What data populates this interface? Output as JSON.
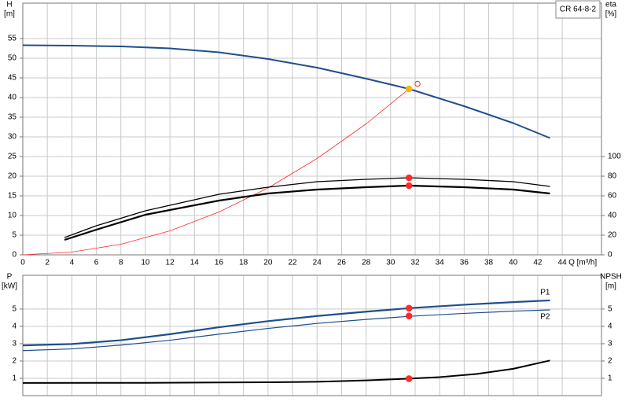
{
  "chart_data": [
    {
      "type": "line",
      "ylabel": [
        "H",
        "[m]"
      ],
      "y2label": [
        "eta",
        "[%]"
      ],
      "xlabel": "Q [m³/h]",
      "label_box": "CR 64-8-2",
      "xlim": [
        0,
        47.2
      ],
      "xticks": [
        0,
        2,
        4,
        6,
        8,
        10,
        12,
        14,
        16,
        18,
        20,
        22,
        24,
        26,
        28,
        30,
        32,
        34,
        36,
        38,
        40,
        42,
        44
      ],
      "ylim": [
        0,
        64
      ],
      "yticks": [
        0,
        5,
        10,
        15,
        20,
        25,
        30,
        35,
        40,
        45,
        50,
        55
      ],
      "y2lim": [
        0,
        256
      ],
      "y2ticks": [
        0,
        20,
        40,
        60,
        80,
        100
      ],
      "grid": true,
      "xtick_labels": true,
      "series": [
        {
          "color": "#ff2a2a",
          "width": 0.8,
          "x": [
            0,
            4,
            8,
            12,
            16,
            20,
            24,
            28,
            31.5
          ],
          "values": [
            0,
            0.7,
            2.7,
            6.1,
            10.9,
            17,
            24.5,
            33.3,
            42.2
          ]
        },
        {
          "color": "#1f4e8c",
          "width": 2,
          "x": [
            0,
            4,
            8,
            12,
            16,
            20,
            24,
            28,
            31.5,
            36,
            40,
            43
          ],
          "values": [
            53.3,
            53.2,
            53.0,
            52.5,
            51.5,
            49.8,
            47.6,
            44.8,
            42.2,
            37.8,
            33.5,
            29.7
          ]
        },
        {
          "color": "#000000",
          "width": 1.3,
          "axis": "y2",
          "x": [
            3.4,
            6,
            10,
            16,
            20,
            24,
            28,
            31.5,
            36,
            40,
            43
          ],
          "values": [
            17.6,
            29.6,
            44.8,
            61.6,
            68.8,
            74.4,
            76.8,
            78.4,
            76.8,
            74.4,
            69.6
          ]
        },
        {
          "color": "#000000",
          "width": 2.2,
          "axis": "y2",
          "x": [
            3.4,
            6,
            10,
            16,
            20,
            24,
            28,
            31.5,
            36,
            40,
            43
          ],
          "values": [
            15.2,
            25.6,
            40.8,
            55.2,
            62.4,
            66.4,
            68.8,
            70.4,
            68.8,
            66.4,
            62.4
          ]
        },
        {
          "color": "#ff2a2a",
          "marker": "dot",
          "axis": "y2",
          "x": [
            31.5,
            31.5
          ],
          "values": [
            78.4,
            70.4
          ]
        },
        {
          "color": "#ff2a2a",
          "marker": "ring",
          "x": [
            32.2
          ],
          "values": [
            43.5
          ]
        },
        {
          "color": "#f5b800",
          "marker": "dot",
          "x": [
            31.5
          ],
          "values": [
            42.2
          ]
        }
      ]
    },
    {
      "type": "line",
      "ylabel": [
        "P",
        "[kW]"
      ],
      "y2label": [
        "NPSH",
        "[m]"
      ],
      "xlim": [
        0,
        47.2
      ],
      "xticks": [
        0,
        2,
        4,
        6,
        8,
        10,
        12,
        14,
        16,
        18,
        20,
        22,
        24,
        26,
        28,
        30,
        32,
        34,
        36,
        38,
        40,
        42,
        44
      ],
      "ylim": [
        0,
        6.95
      ],
      "yticks": [
        1,
        2,
        3,
        4,
        5
      ],
      "y2lim": [
        0,
        6.95
      ],
      "y2ticks": [
        1,
        2,
        3,
        4,
        5
      ],
      "grid": true,
      "xtick_labels": false,
      "series": [
        {
          "name": "P1",
          "color": "#1f4e8c",
          "width": 2.2,
          "x": [
            0,
            4,
            8,
            12,
            16,
            20,
            24,
            28,
            31.5,
            36,
            40,
            43
          ],
          "values": [
            2.9,
            2.98,
            3.2,
            3.55,
            3.95,
            4.3,
            4.6,
            4.85,
            5.05,
            5.25,
            5.4,
            5.5
          ]
        },
        {
          "name": "P2",
          "color": "#1f4e8c",
          "width": 1.2,
          "x": [
            0,
            4,
            8,
            12,
            16,
            20,
            24,
            28,
            31.5,
            36,
            40,
            43
          ],
          "values": [
            2.6,
            2.7,
            2.92,
            3.2,
            3.55,
            3.88,
            4.17,
            4.4,
            4.58,
            4.75,
            4.88,
            4.95
          ]
        },
        {
          "color": "#000000",
          "width": 2,
          "axis": "y2",
          "x": [
            0,
            10,
            16,
            20,
            24,
            28,
            31.5,
            34,
            37,
            40,
            43
          ],
          "values": [
            0.73,
            0.74,
            0.76,
            0.77,
            0.8,
            0.88,
            0.98,
            1.07,
            1.25,
            1.55,
            2.03
          ]
        },
        {
          "color": "#ff2a2a",
          "marker": "dot",
          "x": [
            31.5,
            31.5
          ],
          "values": [
            5.05,
            4.6
          ]
        },
        {
          "color": "#ff2a2a",
          "marker": "dot",
          "axis": "y2",
          "x": [
            31.5
          ],
          "values": [
            0.98
          ]
        }
      ]
    }
  ]
}
